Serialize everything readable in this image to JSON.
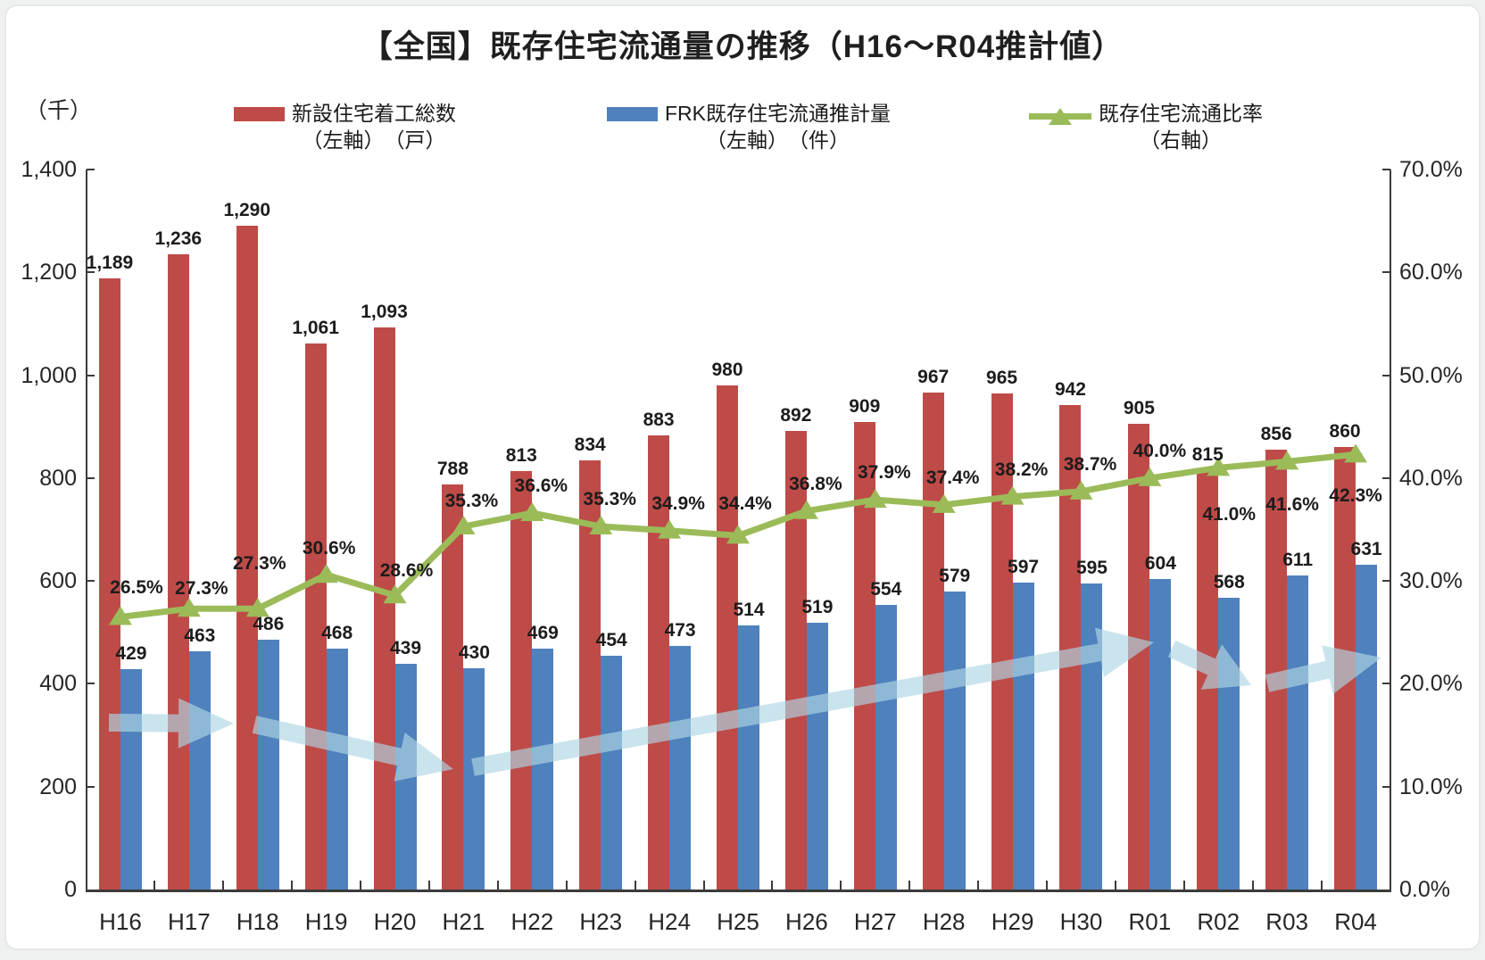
{
  "title": "【全国】既存住宅流通量の推移（H16～R04推計値）",
  "left_axis_unit": "（千）",
  "legend": {
    "items": [
      {
        "label": "新設住宅着工総数",
        "sublabel": "（左軸）　（戸）",
        "swatch": "bar",
        "color": "#BE4B48"
      },
      {
        "label": "FRK既存住宅流通推計量",
        "sublabel": "（左軸）　（件）",
        "swatch": "bar",
        "color": "#4F81BD"
      },
      {
        "label": "既存住宅流通比率",
        "sublabel": "（右軸）",
        "swatch": "line",
        "color": "#9BBB59"
      }
    ]
  },
  "chart_data": {
    "type": "bar+line-combo",
    "categories": [
      "H16",
      "H17",
      "H18",
      "H19",
      "H20",
      "H21",
      "H22",
      "H23",
      "H24",
      "H25",
      "H26",
      "H27",
      "H28",
      "H29",
      "H30",
      "R01",
      "R02",
      "R03",
      "R04"
    ],
    "series": [
      {
        "name": "新設住宅着工総数（左軸）（戸）",
        "type": "bar",
        "axis": "left",
        "color": "#BE4B48",
        "values": [
          1189,
          1236,
          1290,
          1061,
          1093,
          788,
          813,
          834,
          883,
          980,
          892,
          909,
          967,
          965,
          942,
          905,
          815,
          856,
          860
        ],
        "labels": [
          "1,189",
          "1,236",
          "1,290",
          "1,061",
          "1,093",
          "788",
          "813",
          "834",
          "883",
          "980",
          "892",
          "909",
          "967",
          "965",
          "942",
          "905",
          "815",
          "856",
          "860"
        ]
      },
      {
        "name": "FRK既存住宅流通推計量（左軸）（件）",
        "type": "bar",
        "axis": "left",
        "color": "#4F81BD",
        "values": [
          429,
          463,
          486,
          468,
          439,
          430,
          469,
          454,
          473,
          514,
          519,
          554,
          579,
          597,
          595,
          604,
          568,
          611,
          631
        ],
        "labels": [
          "429",
          "463",
          "486",
          "468",
          "439",
          "430",
          "469",
          "454",
          "473",
          "514",
          "519",
          "554",
          "579",
          "597",
          "595",
          "604",
          "568",
          "611",
          "631"
        ]
      },
      {
        "name": "既存住宅流通比率（右軸）",
        "type": "line",
        "axis": "right",
        "color": "#9BBB59",
        "marker": "triangle",
        "values": [
          26.5,
          27.3,
          27.3,
          30.6,
          28.6,
          35.3,
          36.6,
          35.3,
          34.9,
          34.4,
          36.8,
          37.9,
          37.4,
          38.2,
          38.7,
          40.0,
          41.0,
          41.6,
          42.3
        ],
        "labels": [
          "26.5%",
          "27.3%",
          "27.3%",
          "30.6%",
          "28.6%",
          "35.3%",
          "36.6%",
          "35.3%",
          "34.9%",
          "34.4%",
          "36.8%",
          "37.9%",
          "37.4%",
          "38.2%",
          "38.7%",
          "40.0%",
          "41.0%",
          "41.6%",
          "42.3%"
        ]
      }
    ],
    "left_axis": {
      "min": 0,
      "max": 1400,
      "step": 200,
      "tick_labels": [
        "0",
        "200",
        "400",
        "600",
        "800",
        "1,000",
        "1,200",
        "1,400"
      ]
    },
    "right_axis": {
      "min": 0,
      "max": 70,
      "step": 10,
      "tick_labels": [
        "0.0%",
        "10.0%",
        "20.0%",
        "30.0%",
        "40.0%",
        "50.0%",
        "60.0%",
        "70.0%"
      ]
    },
    "grid": false,
    "legend_position": "top",
    "pct_label_offsets": {
      "dx": [
        18,
        14,
        2,
        3,
        13,
        9,
        10,
        10,
        10,
        8,
        10,
        10,
        10,
        10,
        10,
        11,
        12,
        6,
        0
      ],
      "dy": [
        -32,
        -22,
        -50,
        -29,
        -27,
        -28,
        -30,
        -30,
        -30,
        -35,
        -30,
        -30,
        -30,
        -30,
        -30,
        -30,
        53,
        49,
        47
      ]
    }
  },
  "annotations": {
    "arrows": {
      "color": "#AFD6E3",
      "opacity": 0.66,
      "segments": [
        {
          "from": [
            122,
            810
          ],
          "to": [
            262,
            811
          ]
        },
        {
          "from": [
            285,
            812
          ],
          "to": [
            508,
            862
          ]
        },
        {
          "from": [
            530,
            860
          ],
          "to": [
            1293,
            720
          ]
        },
        {
          "from": [
            1313,
            727
          ],
          "to": [
            1402,
            768
          ]
        },
        {
          "from": [
            1420,
            766
          ],
          "to": [
            1548,
            737
          ]
        }
      ]
    }
  }
}
